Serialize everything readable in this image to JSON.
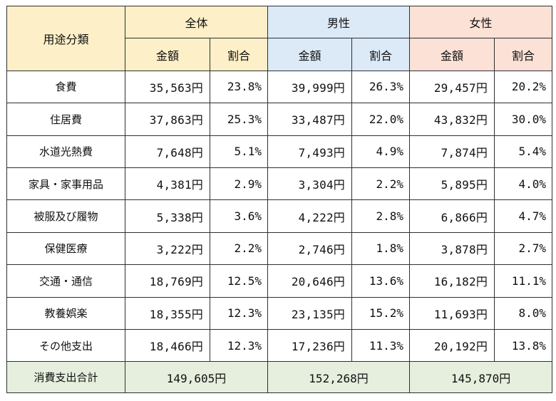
{
  "header": {
    "category": "用途分類",
    "groups": {
      "all": "全体",
      "male": "男性",
      "female": "女性"
    },
    "amount": "金額",
    "ratio": "割合"
  },
  "rows": [
    {
      "category": "食費",
      "all_amount": "35,563円",
      "all_ratio": "23.8%",
      "male_amount": "39,999円",
      "male_ratio": "26.3%",
      "female_amount": "29,457円",
      "female_ratio": "20.2%"
    },
    {
      "category": "住居費",
      "all_amount": "37,863円",
      "all_ratio": "25.3%",
      "male_amount": "33,487円",
      "male_ratio": "22.0%",
      "female_amount": "43,832円",
      "female_ratio": "30.0%"
    },
    {
      "category": "水道光熱費",
      "all_amount": "7,648円",
      "all_ratio": "5.1%",
      "male_amount": "7,493円",
      "male_ratio": "4.9%",
      "female_amount": "7,874円",
      "female_ratio": "5.4%"
    },
    {
      "category": "家具・家事用品",
      "all_amount": "4,381円",
      "all_ratio": "2.9%",
      "male_amount": "3,304円",
      "male_ratio": "2.2%",
      "female_amount": "5,895円",
      "female_ratio": "4.0%"
    },
    {
      "category": "被服及び履物",
      "all_amount": "5,338円",
      "all_ratio": "3.6%",
      "male_amount": "4,222円",
      "male_ratio": "2.8%",
      "female_amount": "6,866円",
      "female_ratio": "4.7%"
    },
    {
      "category": "保健医療",
      "all_amount": "3,222円",
      "all_ratio": "2.2%",
      "male_amount": "2,746円",
      "male_ratio": "1.8%",
      "female_amount": "3,878円",
      "female_ratio": "2.7%"
    },
    {
      "category": "交通・通信",
      "all_amount": "18,769円",
      "all_ratio": "12.5%",
      "male_amount": "20,646円",
      "male_ratio": "13.6%",
      "female_amount": "16,182円",
      "female_ratio": "11.1%"
    },
    {
      "category": "教養娯楽",
      "all_amount": "18,355円",
      "all_ratio": "12.3%",
      "male_amount": "23,135円",
      "male_ratio": "15.2%",
      "female_amount": "11,693円",
      "female_ratio": "8.0%"
    },
    {
      "category": "その他支出",
      "all_amount": "18,466円",
      "all_ratio": "12.3%",
      "male_amount": "17,236円",
      "male_ratio": "11.3%",
      "female_amount": "20,192円",
      "female_ratio": "13.8%"
    }
  ],
  "total": {
    "label": "消費支出合計",
    "all": "149,605円",
    "male": "152,268円",
    "female": "145,870円"
  }
}
